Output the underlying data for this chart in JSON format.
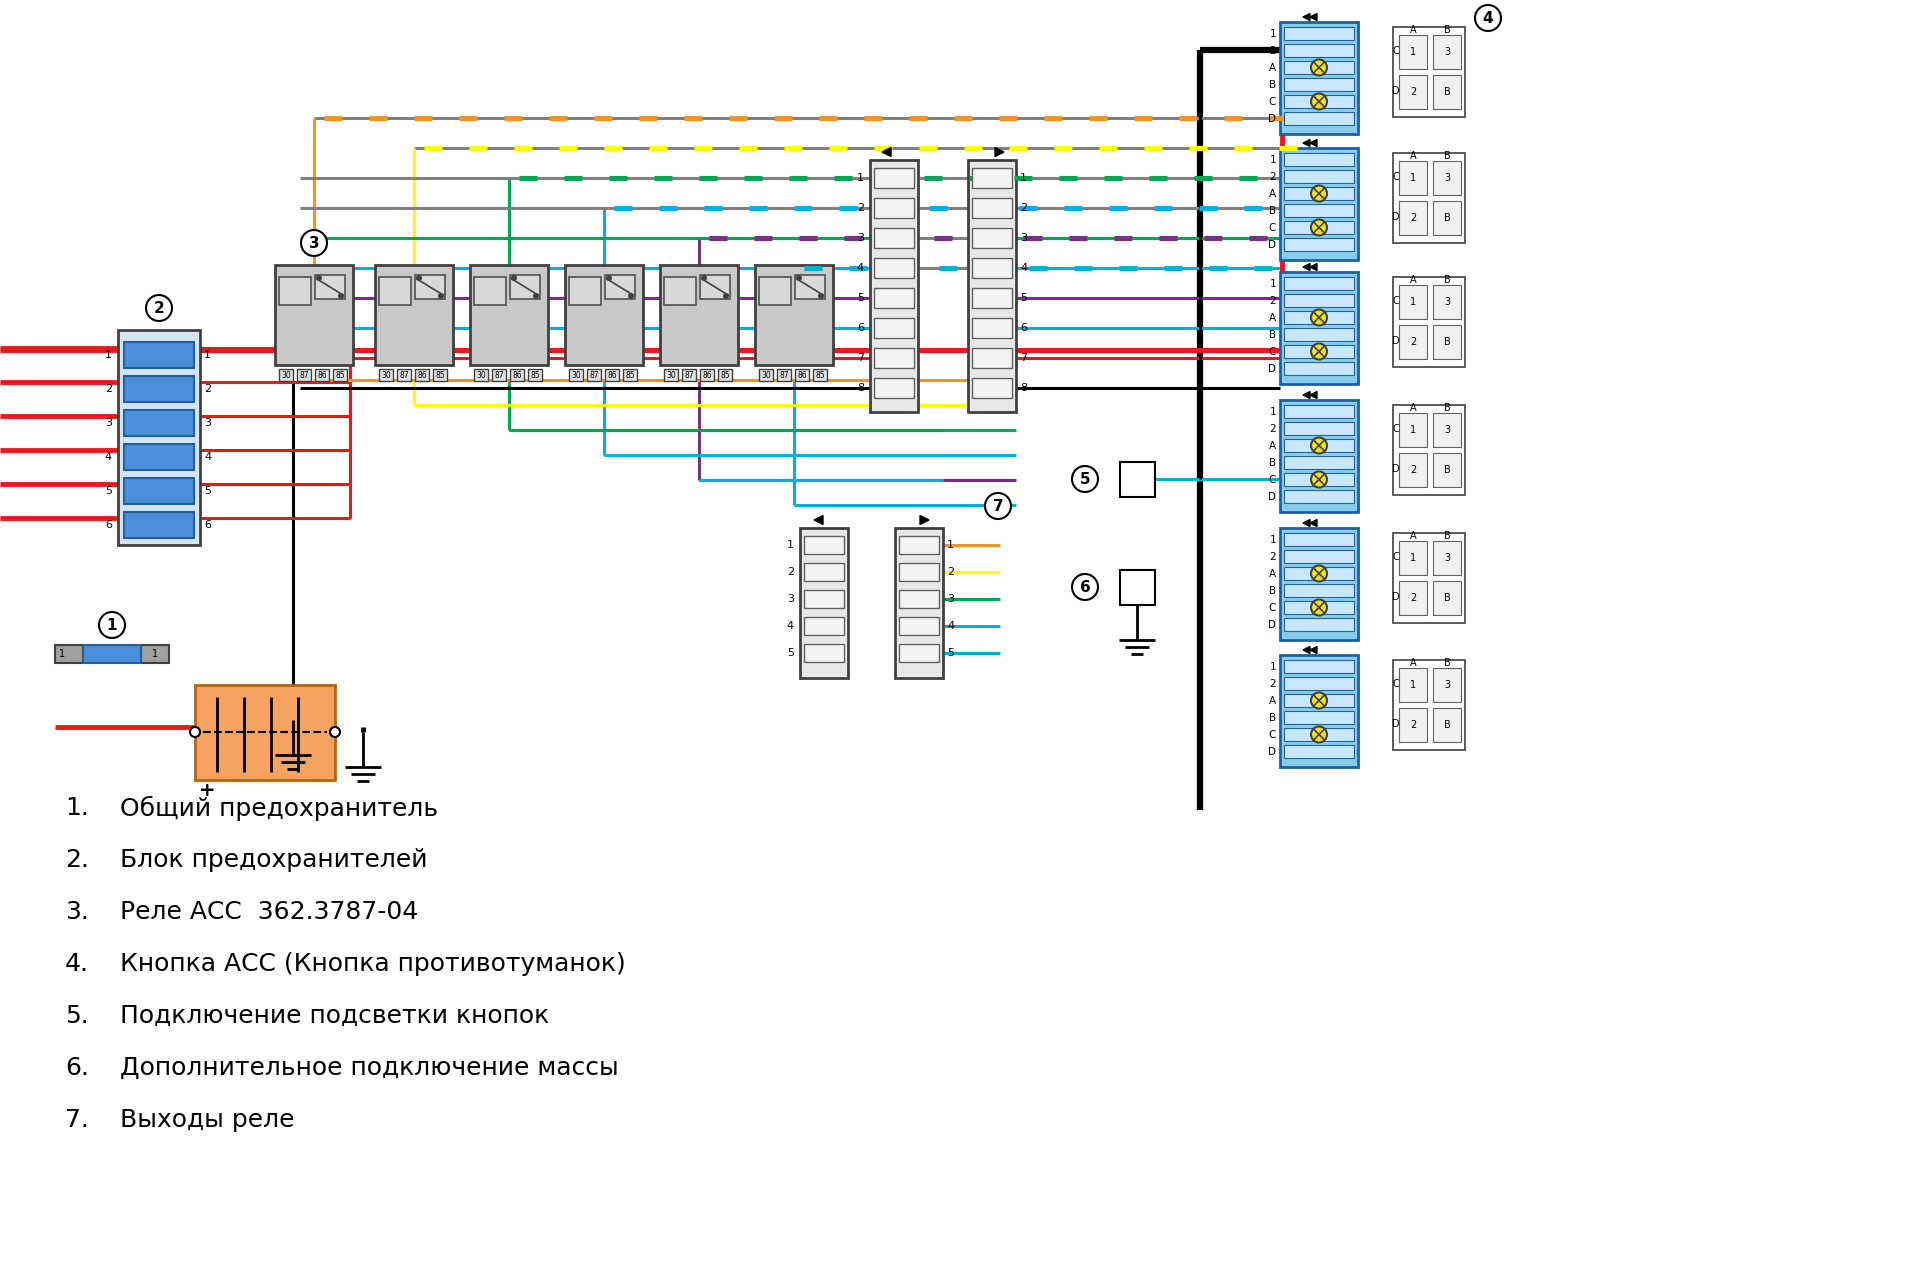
{
  "background": "#ffffff",
  "legend_items": [
    {
      "num": "1.",
      "text": "Общий предохранитель"
    },
    {
      "num": "2.",
      "text": "Блок предохранителей"
    },
    {
      "num": "3.",
      "text": "Реле АСС  362.3787-04"
    },
    {
      "num": "4.",
      "text": "Кнопка АСС (Кнопка противотуманок)"
    },
    {
      "num": "5.",
      "text": "Подключение подсветки кнопок"
    },
    {
      "num": "6.",
      "text": "Дополнительное подключение массы"
    },
    {
      "num": "7.",
      "text": "Выходы реле"
    }
  ],
  "colors": {
    "red": "#e8191a",
    "black": "#000000",
    "gray": "#808080",
    "orange": "#f7941d",
    "yellow": "#ffff00",
    "green": "#00a651",
    "blue": "#00aeef",
    "cyan": "#00b0d8",
    "purple": "#7b2d8b",
    "light_blue": "#87ceeb",
    "white": "#ffffff",
    "fuse_blue": "#4a90d9",
    "relay_gray": "#c0c0c0",
    "battery_fill": "#f4a460",
    "btn_blue": "#87ceeb"
  }
}
